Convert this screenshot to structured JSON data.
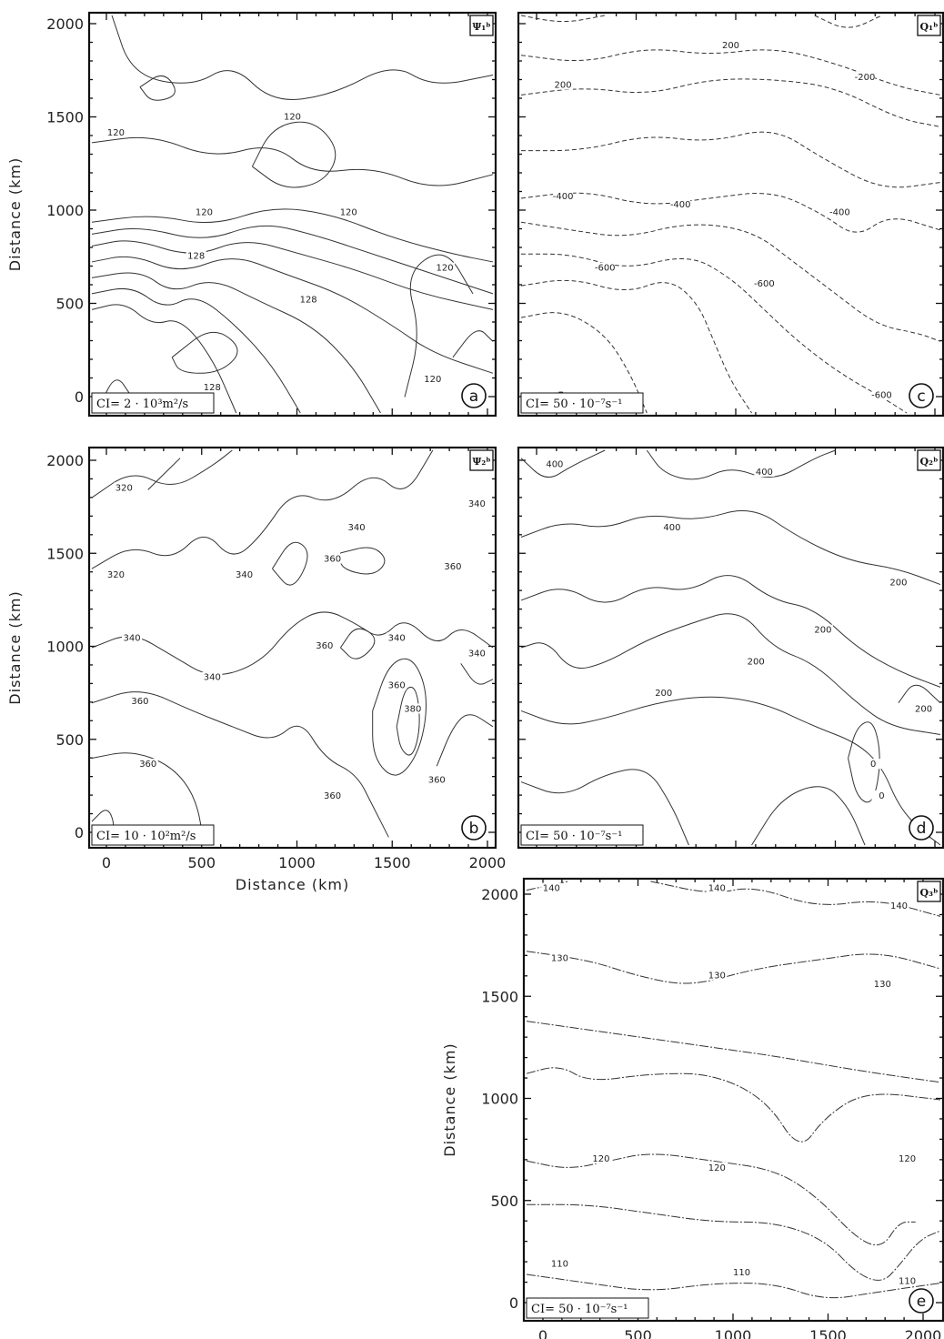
{
  "figure": {
    "axis_label": "Distance (km)",
    "panels": [
      {
        "id": "a",
        "tag": "Ψ₁ᵇ",
        "ci": "CI= 2 · 10³m²/s",
        "contour_labels": [
          "120",
          "120",
          "120",
          "120",
          "128",
          "128",
          "128",
          "120",
          "120"
        ]
      },
      {
        "id": "b",
        "tag": "Ψ₂ᵇ",
        "ci": "CI= 10 · 10²m²/s",
        "contour_labels": [
          "320",
          "340",
          "340",
          "320",
          "360",
          "340",
          "340",
          "340",
          "340",
          "360",
          "360",
          "360",
          "360",
          "380",
          "360",
          "360",
          "360",
          "340"
        ]
      },
      {
        "id": "c",
        "tag": "Q₁ᵇ",
        "ci": "CI= 50 · 10⁻⁷s⁻¹",
        "contour_labels": [
          "200",
          "200",
          "-200",
          "-400",
          "-400",
          "-400",
          "-600",
          "-600",
          "-600"
        ]
      },
      {
        "id": "d",
        "tag": "Q₂ᵇ",
        "ci": "CI= 50 · 10⁻⁷s⁻¹",
        "contour_labels": [
          "400",
          "400",
          "400",
          "200",
          "200",
          "200",
          "200",
          "200",
          "0",
          "0"
        ]
      },
      {
        "id": "e",
        "tag": "Q₃ᵇ",
        "ci": "CI= 50 · 10⁻⁷s⁻¹",
        "contour_labels": [
          "140",
          "140",
          "140",
          "130",
          "130",
          "130",
          "120",
          "120",
          "120",
          "110",
          "110",
          "110"
        ]
      }
    ]
  },
  "chart_data": [
    {
      "type": "heatmap",
      "panel": "a",
      "title": "Ψ₁ᵇ",
      "xlim": [
        0,
        2000
      ],
      "ylim": [
        0,
        2000
      ],
      "y_ticks": [
        "0",
        "500",
        "1000",
        "1500",
        "2000"
      ],
      "x_ticks": [],
      "ylabel": "Distance (km)",
      "xlabel": "",
      "contour_interval": "CI= 2 · 10³m²/s",
      "contour_levels": [
        120,
        128
      ]
    },
    {
      "type": "heatmap",
      "panel": "b",
      "title": "Ψ₂ᵇ",
      "xlim": [
        0,
        2000
      ],
      "ylim": [
        0,
        2000
      ],
      "y_ticks": [
        "0",
        "500",
        "1000",
        "1500",
        "2000"
      ],
      "x_ticks": [
        "0",
        "500",
        "1000",
        "1500",
        "2000"
      ],
      "ylabel": "Distance (km)",
      "xlabel": "Distance (km)",
      "contour_interval": "CI= 10 · 10²m²/s",
      "contour_levels": [
        320,
        340,
        360,
        380
      ]
    },
    {
      "type": "heatmap",
      "panel": "c",
      "title": "Q₁ᵇ",
      "xlim": [
        0,
        2000
      ],
      "ylim": [
        0,
        2000
      ],
      "y_ticks": [],
      "x_ticks": [],
      "ylabel": "",
      "xlabel": "",
      "contour_interval": "CI= 50 · 10⁻⁷s⁻¹",
      "contour_levels": [
        -600,
        -400,
        -200,
        200
      ]
    },
    {
      "type": "heatmap",
      "panel": "d",
      "title": "Q₂ᵇ",
      "xlim": [
        0,
        2000
      ],
      "ylim": [
        0,
        2000
      ],
      "y_ticks": [],
      "x_ticks": [],
      "ylabel": "",
      "xlabel": "",
      "contour_interval": "CI= 50 · 10⁻⁷s⁻¹",
      "contour_levels": [
        0,
        200,
        400
      ]
    },
    {
      "type": "heatmap",
      "panel": "e",
      "title": "Q₃ᵇ",
      "xlim": [
        0,
        2000
      ],
      "ylim": [
        0,
        2000
      ],
      "y_ticks": [
        "0",
        "500",
        "1000",
        "1500",
        "2000"
      ],
      "x_ticks": [
        "0",
        "500",
        "1000",
        "1500",
        "2000"
      ],
      "ylabel": "Distance (km)",
      "xlabel": "Distance (km)",
      "contour_interval": "CI= 50 · 10⁻⁷s⁻¹",
      "contour_levels": [
        110,
        120,
        130,
        140
      ]
    }
  ]
}
